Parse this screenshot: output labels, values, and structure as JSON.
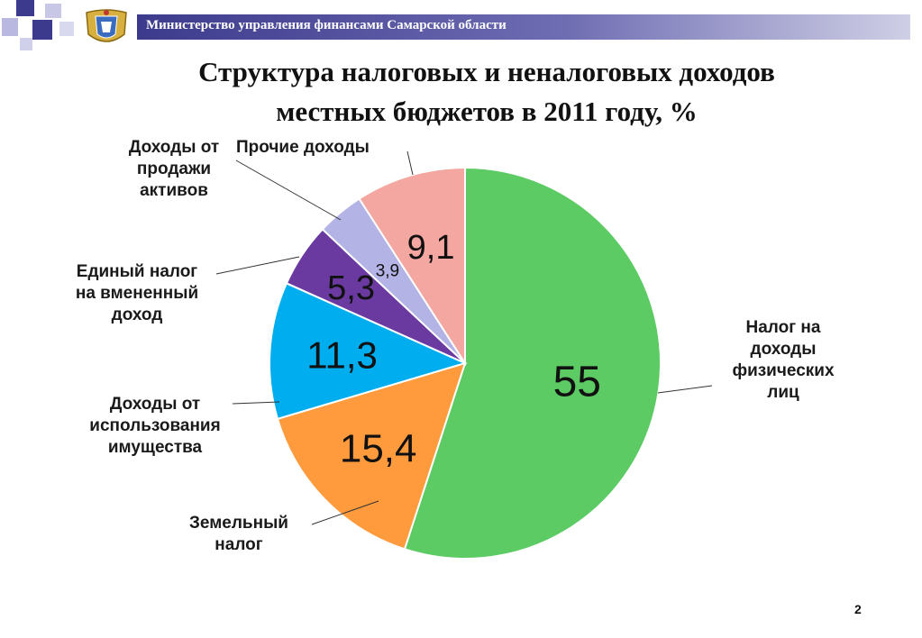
{
  "header": {
    "title": "Министерство управления финансами Самарской области"
  },
  "title_lines": [
    "Структура налоговых и неналоговых доходов",
    "местных бюджетов в 2011 году, %"
  ],
  "page_number": "2",
  "chart_data": {
    "type": "pie",
    "title": "Структура налоговых и неналоговых доходов местных бюджетов в 2011 году, %",
    "unit": "%",
    "slices": [
      {
        "label_lines": [
          "Налог на",
          "доходы",
          "физических",
          "лиц"
        ],
        "value": 55,
        "value_text": "55",
        "color": "#5ccb63"
      },
      {
        "label_lines": [
          "Земельный",
          "налог"
        ],
        "value": 15.4,
        "value_text": "15,4",
        "color": "#ff9b3d"
      },
      {
        "label_lines": [
          "Доходы от",
          "использования",
          "имущества"
        ],
        "value": 11.3,
        "value_text": "11,3",
        "color": "#00aeef"
      },
      {
        "label_lines": [
          "Единый налог",
          "на вмененный",
          "доход"
        ],
        "value": 5.3,
        "value_text": "5,3",
        "color": "#6a3aa0"
      },
      {
        "label_lines": [
          "Доходы от",
          "продажи",
          "активов"
        ],
        "value": 3.9,
        "value_text": "3,9",
        "color": "#b3b3e6"
      },
      {
        "label_lines": [
          "Прочие доходы"
        ],
        "value": 9.1,
        "value_text": "9,1",
        "color": "#f4a6a0"
      }
    ]
  }
}
